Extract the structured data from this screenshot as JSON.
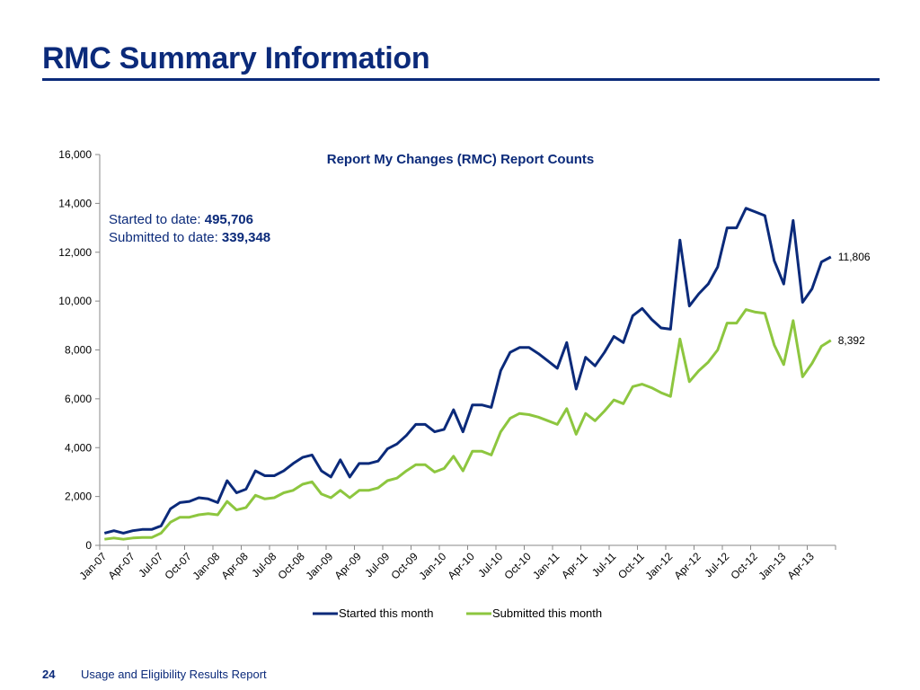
{
  "page": {
    "title": "RMC Summary Information",
    "page_number": "24",
    "footer": "Usage and Eligibility Results Report"
  },
  "annotation": {
    "started_label": "Started to date: ",
    "started_value": "495,706",
    "submitted_label": "Submitted to date: ",
    "submitted_value": "339,348"
  },
  "colors": {
    "started": "#0b2a7a",
    "submitted": "#8dc63f",
    "title": "#0b2a7a"
  },
  "chart_data": {
    "type": "line",
    "title": "Report My Changes (RMC) Report Counts",
    "xlabel": "",
    "ylabel": "",
    "ylim": [
      0,
      16000
    ],
    "yticks": [
      "0",
      "2,000",
      "4,000",
      "6,000",
      "8,000",
      "10,000",
      "12,000",
      "14,000",
      "16,000"
    ],
    "x": [
      "Jan-07",
      "Feb-07",
      "Mar-07",
      "Apr-07",
      "May-07",
      "Jun-07",
      "Jul-07",
      "Aug-07",
      "Sep-07",
      "Oct-07",
      "Nov-07",
      "Dec-07",
      "Jan-08",
      "Feb-08",
      "Mar-08",
      "Apr-08",
      "May-08",
      "Jun-08",
      "Jul-08",
      "Aug-08",
      "Sep-08",
      "Oct-08",
      "Nov-08",
      "Dec-08",
      "Jan-09",
      "Feb-09",
      "Mar-09",
      "Apr-09",
      "May-09",
      "Jun-09",
      "Jul-09",
      "Aug-09",
      "Sep-09",
      "Oct-09",
      "Nov-09",
      "Dec-09",
      "Jan-10",
      "Feb-10",
      "Mar-10",
      "Apr-10",
      "May-10",
      "Jun-10",
      "Jul-10",
      "Aug-10",
      "Sep-10",
      "Oct-10",
      "Nov-10",
      "Dec-10",
      "Jan-11",
      "Feb-11",
      "Mar-11",
      "Apr-11",
      "May-11",
      "Jun-11",
      "Jul-11",
      "Aug-11",
      "Sep-11",
      "Oct-11",
      "Nov-11",
      "Dec-11",
      "Jan-12",
      "Feb-12",
      "Mar-12",
      "Apr-12",
      "May-12",
      "Jun-12",
      "Jul-12",
      "Aug-12",
      "Sep-12",
      "Oct-12",
      "Nov-12",
      "Dec-12",
      "Jan-13",
      "Feb-13",
      "Mar-13",
      "Apr-13",
      "May-13",
      "Jun-13"
    ],
    "xtick_labels": [
      "Jan-07",
      "Apr-07",
      "Jul-07",
      "Oct-07",
      "Jan-08",
      "Apr-08",
      "Jul-08",
      "Oct-08",
      "Jan-09",
      "Apr-09",
      "Jul-09",
      "Oct-09",
      "Jan-10",
      "Apr-10",
      "Jul-10",
      "Oct-10",
      "Jan-11",
      "Apr-11",
      "Jul-11",
      "Oct-11",
      "Jan-12",
      "Apr-12",
      "Jul-12",
      "Oct-12",
      "Jan-13",
      "Apr-13"
    ],
    "legend_position": "bottom",
    "series": [
      {
        "name": "Started this month",
        "end_label": "11,806",
        "values": [
          500,
          600,
          500,
          600,
          650,
          650,
          800,
          1500,
          1750,
          1800,
          1950,
          1900,
          1750,
          2650,
          2150,
          2300,
          3050,
          2850,
          2850,
          3050,
          3350,
          3600,
          3700,
          3050,
          2800,
          3500,
          2800,
          3350,
          3350,
          3450,
          3950,
          4150,
          4500,
          4950,
          4950,
          4650,
          4750,
          5550,
          4650,
          5750,
          5750,
          5650,
          7150,
          7900,
          8100,
          8100,
          7850,
          7550,
          7250,
          8300,
          6400,
          7700,
          7350,
          7900,
          8550,
          8300,
          9400,
          9700,
          9250,
          8900,
          8850,
          12500,
          9800,
          10300,
          10700,
          11400,
          13000,
          13000,
          13800,
          13650,
          13500,
          11650,
          10700,
          13300,
          9950,
          10500,
          11600,
          11806
        ]
      },
      {
        "name": "Submitted this month",
        "end_label": "8,392",
        "values": [
          250,
          300,
          250,
          300,
          320,
          320,
          500,
          950,
          1150,
          1150,
          1250,
          1300,
          1250,
          1800,
          1450,
          1550,
          2050,
          1900,
          1950,
          2150,
          2250,
          2500,
          2600,
          2100,
          1950,
          2250,
          1950,
          2250,
          2250,
          2350,
          2650,
          2750,
          3050,
          3300,
          3300,
          3000,
          3150,
          3650,
          3050,
          3850,
          3850,
          3700,
          4650,
          5200,
          5400,
          5350,
          5250,
          5100,
          4950,
          5600,
          4550,
          5400,
          5100,
          5500,
          5950,
          5800,
          6500,
          6600,
          6450,
          6250,
          6100,
          8450,
          6700,
          7150,
          7500,
          8000,
          9100,
          9100,
          9650,
          9550,
          9500,
          8200,
          7400,
          9200,
          6900,
          7450,
          8150,
          8392
        ]
      }
    ]
  }
}
